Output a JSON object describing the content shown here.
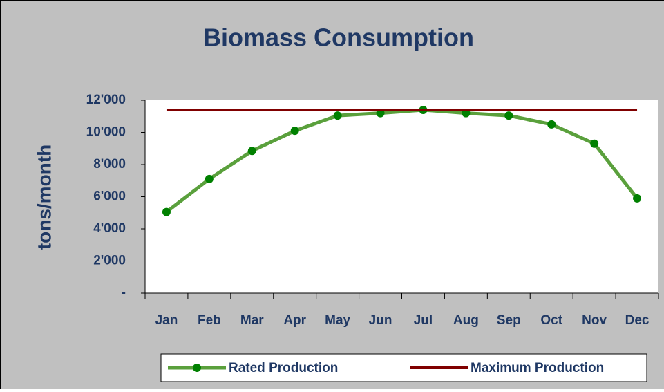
{
  "chart_data": {
    "type": "line",
    "title": "Biomass Consumption",
    "y_label": "tons/month",
    "categories": [
      "Jan",
      "Feb",
      "Mar",
      "Apr",
      "May",
      "Jun",
      "Jul",
      "Aug",
      "Sep",
      "Oct",
      "Nov",
      "Dec"
    ],
    "series": [
      {
        "name": "Rated Production",
        "color": "#5aa03c",
        "marker_color": "#008000",
        "markers": true,
        "values": [
          5050,
          7100,
          8850,
          10100,
          11050,
          11200,
          11400,
          11200,
          11050,
          10500,
          9300,
          5900
        ]
      },
      {
        "name": "Maximum Production",
        "color": "#800000",
        "markers": false,
        "values": [
          11400,
          11400,
          11400,
          11400,
          11400,
          11400,
          11400,
          11400,
          11400,
          11400,
          11400,
          11400
        ]
      }
    ],
    "ylim": [
      0,
      12000
    ],
    "yticks": [
      {
        "value": 0,
        "label": "-"
      },
      {
        "value": 2000,
        "label": "2'000"
      },
      {
        "value": 4000,
        "label": "4'000"
      },
      {
        "value": 6000,
        "label": "6'000"
      },
      {
        "value": 8000,
        "label": "8'000"
      },
      {
        "value": 10000,
        "label": "10'000"
      },
      {
        "value": 12000,
        "label": "12'000"
      }
    ],
    "legend": "bottom"
  }
}
